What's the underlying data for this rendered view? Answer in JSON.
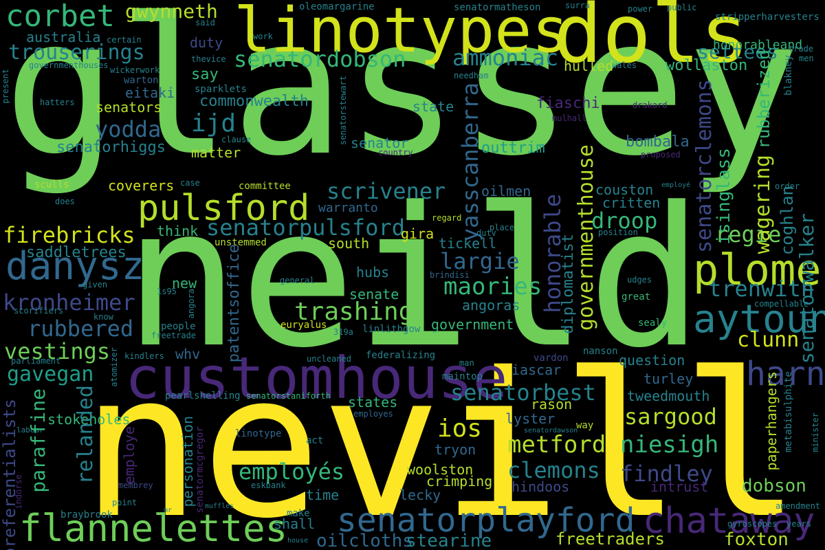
{
  "background": "#000000",
  "palette": [
    "#fde725",
    "#b5de2b",
    "#6ece58",
    "#35b779",
    "#1f9e89",
    "#26828e",
    "#31688e",
    "#3e4989",
    "#482878",
    "#440154"
  ],
  "words": [
    {
      "text": "glassey",
      "color": "#6ece58"
    },
    {
      "text": "neild",
      "color": "#6ece58"
    },
    {
      "text": "nevill",
      "color": "#fde725"
    },
    {
      "text": "linotypes",
      "color": "#d2e21b"
    },
    {
      "text": "dols",
      "color": "#d2e21b"
    },
    {
      "text": "customhouse",
      "color": "#482878"
    },
    {
      "text": "senatorplayford",
      "color": "#31688e"
    },
    {
      "text": "flannelettes",
      "color": "#6ece58"
    },
    {
      "text": "pulsford",
      "color": "#b5de2b"
    },
    {
      "text": "plomer",
      "color": "#b5de2b"
    },
    {
      "text": "aytoun",
      "color": "#26828e"
    },
    {
      "text": "danysz",
      "color": "#31688e"
    },
    {
      "text": "chataway",
      "color": "#482878"
    },
    {
      "text": "corbet",
      "color": "#35b779"
    },
    {
      "text": "senatorpulsford",
      "color": "#26828e"
    },
    {
      "text": "harney",
      "color": "#3e4989"
    },
    {
      "text": "senatordobson",
      "color": "#35b779"
    },
    {
      "text": "trouserings",
      "color": "#26828e"
    },
    {
      "text": "gwynneth",
      "color": "#b5de2b"
    },
    {
      "text": "ammoniac",
      "color": "#26828e"
    },
    {
      "text": "firebricks",
      "color": "#d2e21b"
    },
    {
      "text": "kronheimer",
      "color": "#3e4989"
    },
    {
      "text": "rubbered",
      "color": "#31688e"
    },
    {
      "text": "vestings",
      "color": "#6ece58"
    },
    {
      "text": "gavegan",
      "color": "#1f9e89"
    },
    {
      "text": "scrivener",
      "color": "#26828e"
    },
    {
      "text": "trashing",
      "color": "#6ece58"
    },
    {
      "text": "senatorbest",
      "color": "#26828e"
    },
    {
      "text": "metford",
      "color": "#b5de2b"
    },
    {
      "text": "niesigh",
      "color": "#35b779"
    },
    {
      "text": "clemons",
      "color": "#26828e"
    },
    {
      "text": "findley",
      "color": "#3e4989"
    },
    {
      "text": "employés",
      "color": "#35b779"
    },
    {
      "text": "sargood",
      "color": "#b5de2b"
    },
    {
      "text": "maories",
      "color": "#35b779"
    },
    {
      "text": "largie",
      "color": "#31688e"
    },
    {
      "text": "droop",
      "color": "#35b779"
    },
    {
      "text": "regie",
      "color": "#6ece58"
    },
    {
      "text": "trenwith",
      "color": "#26828e"
    },
    {
      "text": "clunn",
      "color": "#d2e21b"
    },
    {
      "text": "yodda",
      "color": "#31688e"
    },
    {
      "text": "ijd",
      "color": "#26828e"
    },
    {
      "text": "settees",
      "color": "#26828e"
    },
    {
      "text": "oilcloths",
      "color": "#31688e"
    },
    {
      "text": "stearine",
      "color": "#26828e"
    },
    {
      "text": "freetraders",
      "color": "#b5de2b"
    },
    {
      "text": "foxton",
      "color": "#b5de2b"
    },
    {
      "text": "dobson",
      "color": "#6ece58"
    },
    {
      "text": "ios",
      "color": "#d2e21b"
    },
    {
      "text": "honorableand",
      "color": "#35b779"
    },
    {
      "text": "wollaston",
      "color": "#35b779"
    },
    {
      "text": "senatorhiggs",
      "color": "#26828e"
    },
    {
      "text": "commonwealth",
      "color": "#26828e"
    },
    {
      "text": "senators",
      "color": "#b5de2b"
    },
    {
      "text": "australia",
      "color": "#26828e"
    },
    {
      "text": "eitaki",
      "color": "#31688e"
    },
    {
      "text": "hulled",
      "color": "#b5de2b"
    },
    {
      "text": "fiaschi",
      "color": "#482878"
    },
    {
      "text": "bombala",
      "color": "#31688e"
    },
    {
      "text": "outtrim",
      "color": "#1f9e89"
    },
    {
      "text": "senator",
      "color": "#26828e"
    },
    {
      "text": "state",
      "color": "#26828e"
    },
    {
      "text": "matter",
      "color": "#b5de2b"
    },
    {
      "text": "coverers",
      "color": "#d2e21b"
    },
    {
      "text": "say",
      "color": "#35b779"
    },
    {
      "text": "duty",
      "color": "#3e4989"
    },
    {
      "text": "warton",
      "color": "#31688e"
    },
    {
      "text": "saddletrees",
      "color": "#26828e"
    },
    {
      "text": "south",
      "color": "#b5de2b"
    },
    {
      "text": "gira",
      "color": "#d2e21b"
    },
    {
      "text": "tickell",
      "color": "#26828e"
    },
    {
      "text": "think",
      "color": "#35b779"
    },
    {
      "text": "warranto",
      "color": "#31688e"
    },
    {
      "text": "oilmen",
      "color": "#31688e"
    },
    {
      "text": "couston",
      "color": "#26828e"
    },
    {
      "text": "critten",
      "color": "#26828e"
    },
    {
      "text": "new",
      "color": "#35b779"
    },
    {
      "text": "senate",
      "color": "#35b779"
    },
    {
      "text": "hubs",
      "color": "#26828e"
    },
    {
      "text": "angoras",
      "color": "#26828e"
    },
    {
      "text": "government",
      "color": "#35b779"
    },
    {
      "text": "states",
      "color": "#35b779"
    },
    {
      "text": "lyster",
      "color": "#31688e"
    },
    {
      "text": "rason",
      "color": "#b5de2b"
    },
    {
      "text": "iascar",
      "color": "#31688e"
    },
    {
      "text": "turley",
      "color": "#31688e"
    },
    {
      "text": "tweedmouth",
      "color": "#26828e"
    },
    {
      "text": "question",
      "color": "#26828e"
    },
    {
      "text": "whv",
      "color": "#31688e"
    },
    {
      "text": "tryon",
      "color": "#31688e"
    },
    {
      "text": "woolston",
      "color": "#b5de2b"
    },
    {
      "text": "crimping",
      "color": "#b5de2b"
    },
    {
      "text": "lecky",
      "color": "#31688e"
    },
    {
      "text": "hindoos",
      "color": "#3e4989"
    },
    {
      "text": "intrust",
      "color": "#482878"
    },
    {
      "text": "shall",
      "color": "#26828e"
    },
    {
      "text": "time",
      "color": "#26828e"
    },
    {
      "text": "stokeholes",
      "color": "#35b779"
    },
    {
      "text": "make",
      "color": "#26828e"
    },
    {
      "text": "committee",
      "color": "#b5de2b"
    },
    {
      "text": "unstemmed",
      "color": "#b5de2b"
    },
    {
      "text": "euryalus",
      "color": "#d2e21b"
    },
    {
      "text": "federalizing",
      "color": "#26828e"
    },
    {
      "text": "linlithgow",
      "color": "#26828e"
    },
    {
      "text": "sealy",
      "color": "#35b779"
    },
    {
      "text": "great",
      "color": "#35b779"
    },
    {
      "text": "vardon",
      "color": "#3e4989"
    },
    {
      "text": "nanson",
      "color": "#26828e"
    },
    {
      "text": "maintop",
      "color": "#26828e"
    },
    {
      "text": "way",
      "color": "#b5de2b"
    },
    {
      "text": "act",
      "color": "#26828e"
    },
    {
      "text": "linotype",
      "color": "#31688e"
    },
    {
      "text": "eskbank",
      "color": "#26828e"
    },
    {
      "text": "point",
      "color": "#26828e"
    },
    {
      "text": "braybrook",
      "color": "#26828e"
    },
    {
      "text": "membrey",
      "color": "#3e4989"
    },
    {
      "text": "employes",
      "color": "#31688e"
    },
    {
      "text": "pearlshelling",
      "color": "#26828e"
    },
    {
      "text": "senatorstaniforth",
      "color": "#35b779"
    },
    {
      "text": "uncleaned",
      "color": "#26828e"
    },
    {
      "text": "kindlers",
      "color": "#26828e"
    },
    {
      "text": "general",
      "color": "#26828e"
    },
    {
      "text": "people",
      "color": "#26828e"
    },
    {
      "text": "know",
      "color": "#26828e"
    },
    {
      "text": "given",
      "color": "#26828e"
    },
    {
      "text": "1s95",
      "color": "#26828e"
    },
    {
      "text": "scorifiers",
      "color": "#26828e"
    },
    {
      "text": "parliament",
      "color": "#26828e"
    },
    {
      "text": "sculls",
      "color": "#b5de2b"
    },
    {
      "text": "does",
      "color": "#26828e"
    },
    {
      "text": "hatters",
      "color": "#26828e"
    },
    {
      "text": "governmenthouses",
      "color": "#26828e"
    },
    {
      "text": "wickerwork",
      "color": "#26828e"
    },
    {
      "text": "certain",
      "color": "#26828e"
    },
    {
      "text": "sparklets",
      "color": "#26828e"
    },
    {
      "text": "thevice",
      "color": "#26828e"
    },
    {
      "text": "work",
      "color": "#26828e"
    },
    {
      "text": "said",
      "color": "#26828e"
    },
    {
      "text": "oleomargarine",
      "color": "#26828e"
    },
    {
      "text": "senatormatheson",
      "color": "#26828e"
    },
    {
      "text": "surra",
      "color": "#26828e"
    },
    {
      "text": "power",
      "color": "#26828e"
    },
    {
      "text": "public",
      "color": "#26828e"
    },
    {
      "text": "stripperharvesters",
      "color": "#26828e"
    },
    {
      "text": "trade",
      "color": "#26828e"
    },
    {
      "text": "men",
      "color": "#26828e"
    },
    {
      "text": "wales",
      "color": "#26828e"
    },
    {
      "text": "needham",
      "color": "#26828e"
    },
    {
      "text": "drakard",
      "color": "#482878"
    },
    {
      "text": "mulhall",
      "color": "#482878"
    },
    {
      "text": "clause",
      "color": "#26828e"
    },
    {
      "text": "country",
      "color": "#482878"
    },
    {
      "text": "proposed",
      "color": "#482878"
    },
    {
      "text": "case",
      "color": "#26828e"
    },
    {
      "text": "regard",
      "color": "#b5de2b"
    },
    {
      "text": "place",
      "color": "#26828e"
    },
    {
      "text": "position",
      "color": "#26828e"
    },
    {
      "text": "dutv",
      "color": "#26828e"
    },
    {
      "text": "brindisi",
      "color": "#31688e"
    },
    {
      "text": "udges",
      "color": "#26828e"
    },
    {
      "text": "order",
      "color": "#26828e"
    },
    {
      "text": "employé",
      "color": "#26828e"
    },
    {
      "text": "compellable",
      "color": "#26828e"
    },
    {
      "text": "freetrade",
      "color": "#26828e"
    },
    {
      "text": "319a",
      "color": "#26828e"
    },
    {
      "text": "man",
      "color": "#26828e"
    },
    {
      "text": "senatordawson",
      "color": "#26828e"
    },
    {
      "text": "labour",
      "color": "#26828e"
    },
    {
      "text": "house",
      "color": "#26828e"
    },
    {
      "text": "muffles",
      "color": "#26828e"
    },
    {
      "text": "mr",
      "color": "#26828e"
    },
    {
      "text": "gyroscopes",
      "color": "#26828e"
    },
    {
      "text": "years",
      "color": "#26828e"
    },
    {
      "text": "amendment",
      "color": "#26828e"
    },
    {
      "text": "present",
      "color": "#26828e"
    },
    {
      "text": "yasscanberra",
      "color": "#31688e"
    },
    {
      "text": "honorable",
      "color": "#3e4989"
    },
    {
      "text": "governmenthouse",
      "color": "#b5de2b"
    },
    {
      "text": "diplomatist",
      "color": "#26828e"
    },
    {
      "text": "senatorclemons",
      "color": "#3e4989"
    },
    {
      "text": "isinglass",
      "color": "#35b779"
    },
    {
      "text": "wagering",
      "color": "#b5de2b"
    },
    {
      "text": "rubberized",
      "color": "#35b779"
    },
    {
      "text": "coghlan",
      "color": "#26828e"
    },
    {
      "text": "senatorwalker",
      "color": "#26828e"
    },
    {
      "text": "blakney",
      "color": "#26828e"
    },
    {
      "text": "senatorstewart",
      "color": "#26828e"
    },
    {
      "text": "paperhangers",
      "color": "#b5de2b"
    },
    {
      "text": "metabisulphite",
      "color": "#26828e"
    },
    {
      "text": "minister",
      "color": "#26828e"
    },
    {
      "text": "relanded",
      "color": "#26828e"
    },
    {
      "text": "paraffine",
      "color": "#35b779"
    },
    {
      "text": "preferentialists",
      "color": "#3e4989"
    },
    {
      "text": "patentsoffice",
      "color": "#31688e"
    },
    {
      "text": "atomizer",
      "color": "#26828e"
    },
    {
      "text": "employe",
      "color": "#482878"
    },
    {
      "text": "personation",
      "color": "#26828e"
    },
    {
      "text": "senatormcgregor",
      "color": "#482878"
    },
    {
      "text": "indorse",
      "color": "#482878"
    },
    {
      "text": "angora",
      "color": "#26828e"
    }
  ]
}
